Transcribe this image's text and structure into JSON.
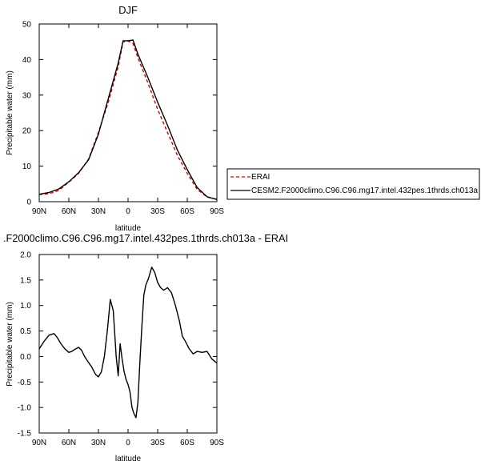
{
  "chart_data": [
    {
      "type": "line",
      "title": "DJF",
      "xlabel": "latitude",
      "ylabel": "Precipitable water (mm)",
      "xlim": [
        90,
        -90
      ],
      "ylim": [
        0,
        50
      ],
      "x_tick_labels": [
        "90N",
        "60N",
        "30N",
        "0",
        "30S",
        "60S",
        "90S"
      ],
      "y_tick_labels": [
        "0",
        "10",
        "20",
        "30",
        "40",
        "50"
      ],
      "legend_position": "right",
      "series": [
        {
          "name": "ERAI",
          "color": "#cc0000",
          "dash": true,
          "x": [
            90,
            80,
            70,
            60,
            50,
            40,
            30,
            20,
            10,
            5,
            0,
            -5,
            -10,
            -20,
            -30,
            -40,
            -50,
            -60,
            -70,
            -80,
            -90
          ],
          "y": [
            2.0,
            2.2,
            3.2,
            5.5,
            8.0,
            12.0,
            19.5,
            28.0,
            38.0,
            45.0,
            45.2,
            44.5,
            40.5,
            33.5,
            26.0,
            19.5,
            13.0,
            8.0,
            3.5,
            1.3,
            0.7
          ]
        },
        {
          "name": "CESM2.F2000climo.C96.C96.mg17.intel.432pes.1thrds.ch013a",
          "color": "#000000",
          "dash": false,
          "x": [
            90,
            80,
            70,
            60,
            50,
            40,
            30,
            20,
            10,
            5,
            0,
            -5,
            -10,
            -20,
            -30,
            -40,
            -50,
            -60,
            -70,
            -80,
            -90
          ],
          "y": [
            2.1,
            2.6,
            3.6,
            5.6,
            8.2,
            11.8,
            19.0,
            29.0,
            39.0,
            45.3,
            45.3,
            45.5,
            41.5,
            35.0,
            28.0,
            21.5,
            14.5,
            9.0,
            4.0,
            1.4,
            0.6
          ]
        }
      ]
    },
    {
      "type": "line",
      "title": ".F2000climo.C96.C96.mg17.intel.432pes.1thrds.ch013a - ERAI",
      "xlabel": "latitude",
      "ylabel": "Precipitable water (mm)",
      "xlim": [
        90,
        -90
      ],
      "ylim": [
        -1.5,
        2.0
      ],
      "x_tick_labels": [
        "90N",
        "60N",
        "30N",
        "0",
        "30S",
        "60S",
        "90S"
      ],
      "y_tick_labels": [
        "-1.5",
        "-1.0",
        "-0.5",
        "0.0",
        "0.5",
        "1.0",
        "1.5",
        "2.0"
      ],
      "series": [
        {
          "color": "#000000",
          "x": [
            90,
            85,
            80,
            75,
            72,
            68,
            64,
            60,
            57,
            54,
            50,
            47,
            44,
            40,
            37,
            33,
            30,
            27,
            24,
            21,
            18,
            15,
            12,
            10,
            8,
            6,
            4,
            2,
            0,
            -2,
            -4,
            -6,
            -8,
            -10,
            -12,
            -14,
            -16,
            -18,
            -21,
            -24,
            -27,
            -30,
            -33,
            -36,
            -40,
            -44,
            -48,
            -52,
            -55,
            -58,
            -62,
            -66,
            -70,
            -75,
            -80,
            -85,
            -90
          ],
          "y": [
            0.15,
            0.3,
            0.42,
            0.45,
            0.38,
            0.25,
            0.15,
            0.08,
            0.1,
            0.14,
            0.18,
            0.12,
            0.0,
            -0.12,
            -0.2,
            -0.35,
            -0.4,
            -0.3,
            0.0,
            0.5,
            1.12,
            0.9,
            0.0,
            -0.38,
            0.25,
            -0.05,
            -0.3,
            -0.45,
            -0.55,
            -0.7,
            -1.0,
            -1.12,
            -1.2,
            -0.9,
            -0.1,
            0.6,
            1.2,
            1.4,
            1.55,
            1.75,
            1.65,
            1.45,
            1.35,
            1.3,
            1.35,
            1.25,
            1.0,
            0.7,
            0.4,
            0.3,
            0.15,
            0.05,
            0.1,
            0.08,
            0.1,
            -0.05,
            -0.13
          ]
        }
      ]
    }
  ]
}
